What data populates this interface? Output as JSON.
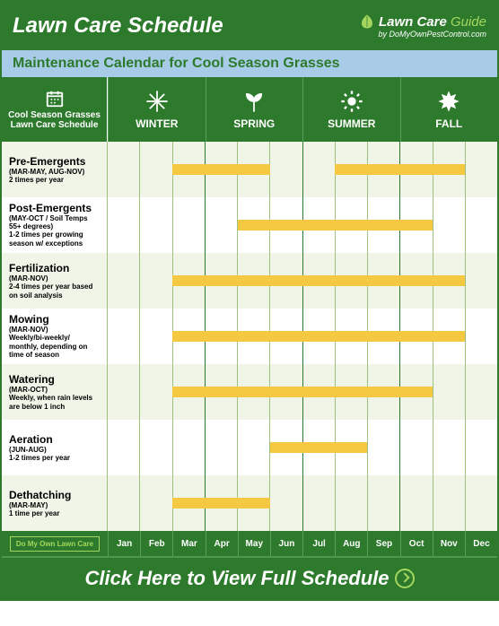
{
  "header": {
    "title": "Lawn Care Schedule",
    "brand_name": "Lawn Care",
    "brand_suffix": "Guide",
    "brand_sub": "by DoMyOwnPestControl.com"
  },
  "subtitle": "Maintenance Calendar for Cool Season Grasses",
  "row_header": {
    "line1": "Cool Season Grasses",
    "line2": "Lawn Care Schedule"
  },
  "seasons": [
    {
      "name": "WINTER"
    },
    {
      "name": "SPRING"
    },
    {
      "name": "SUMMER"
    },
    {
      "name": "FALL"
    }
  ],
  "months": [
    "Jan",
    "Feb",
    "Mar",
    "Apr",
    "May",
    "Jun",
    "Jul",
    "Aug",
    "Sep",
    "Oct",
    "Nov",
    "Dec"
  ],
  "chart": {
    "month_count": 12,
    "bar_color": "#f5c842",
    "bg_even": "#ffffff",
    "bg_odd": "#f0f5e8",
    "grid_color": "#a0c080",
    "season_divider_color": "#2d7a2d",
    "header_bg": "#2d7a2d"
  },
  "tasks": [
    {
      "name": "Pre-Emergents",
      "range": "(MAR-MAY, AUG-NOV)",
      "note": "2 times per year",
      "bars": [
        {
          "start": 2,
          "end": 5
        },
        {
          "start": 7,
          "end": 11
        }
      ]
    },
    {
      "name": "Post-Emergents",
      "range": "(MAY-OCT / Soil Temps 55+ degrees)",
      "note": "1-2 times per growing season w/ exceptions",
      "bars": [
        {
          "start": 4,
          "end": 10
        }
      ]
    },
    {
      "name": "Fertilization",
      "range": "(MAR-NOV)",
      "note": "2-4 times per year based on soil analysis",
      "bars": [
        {
          "start": 2,
          "end": 11
        }
      ]
    },
    {
      "name": "Mowing",
      "range": "(MAR-NOV)",
      "note": "Weekly/bi-weekly/ monthly, depending on time of season",
      "bars": [
        {
          "start": 2,
          "end": 11
        }
      ]
    },
    {
      "name": "Watering",
      "range": "(MAR-OCT)",
      "note": "Weekly, when rain levels are below 1 inch",
      "bars": [
        {
          "start": 2,
          "end": 10
        }
      ]
    },
    {
      "name": "Aeration",
      "range": "(JUN-AUG)",
      "note": "1-2 times per year",
      "bars": [
        {
          "start": 5,
          "end": 8
        }
      ]
    },
    {
      "name": "Dethatching",
      "range": "(MAR-MAY)",
      "note": "1 time per year",
      "bars": [
        {
          "start": 2,
          "end": 5
        }
      ]
    }
  ],
  "footer_button": "Do My Own Lawn Care",
  "cta": "Click Here to View Full Schedule"
}
